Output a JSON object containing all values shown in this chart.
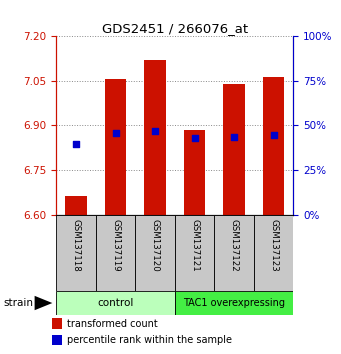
{
  "title": "GDS2451 / 266076_at",
  "samples": [
    "GSM137118",
    "GSM137119",
    "GSM137120",
    "GSM137121",
    "GSM137122",
    "GSM137123"
  ],
  "bar_tops": [
    6.665,
    7.055,
    7.12,
    6.885,
    7.038,
    7.062
  ],
  "bar_base": 6.6,
  "bar_color": "#cc1100",
  "blue_values": [
    6.838,
    6.875,
    6.882,
    6.858,
    6.862,
    6.867
  ],
  "blue_color": "#0000cc",
  "ylim_left": [
    6.6,
    7.2
  ],
  "yticks_left": [
    6.6,
    6.75,
    6.9,
    7.05,
    7.2
  ],
  "ylim_right": [
    0,
    100
  ],
  "yticks_right": [
    0,
    25,
    50,
    75,
    100
  ],
  "ytick_labels_right": [
    "0%",
    "25%",
    "50%",
    "75%",
    "100%"
  ],
  "group1_label": "control",
  "group1_color": "#bbffbb",
  "group2_label": "TAC1 overexpressing",
  "group2_color": "#44ee44",
  "strain_label": "strain",
  "bar_width": 0.55,
  "left_tick_color": "#cc1100",
  "right_tick_color": "#0000cc",
  "grid_color": "#888888",
  "bg_color": "#ffffff",
  "plot_bg": "#ffffff",
  "blue_square_size": 18,
  "legend_red_label": "transformed count",
  "legend_blue_label": "percentile rank within the sample",
  "cell_color": "#c8c8c8"
}
